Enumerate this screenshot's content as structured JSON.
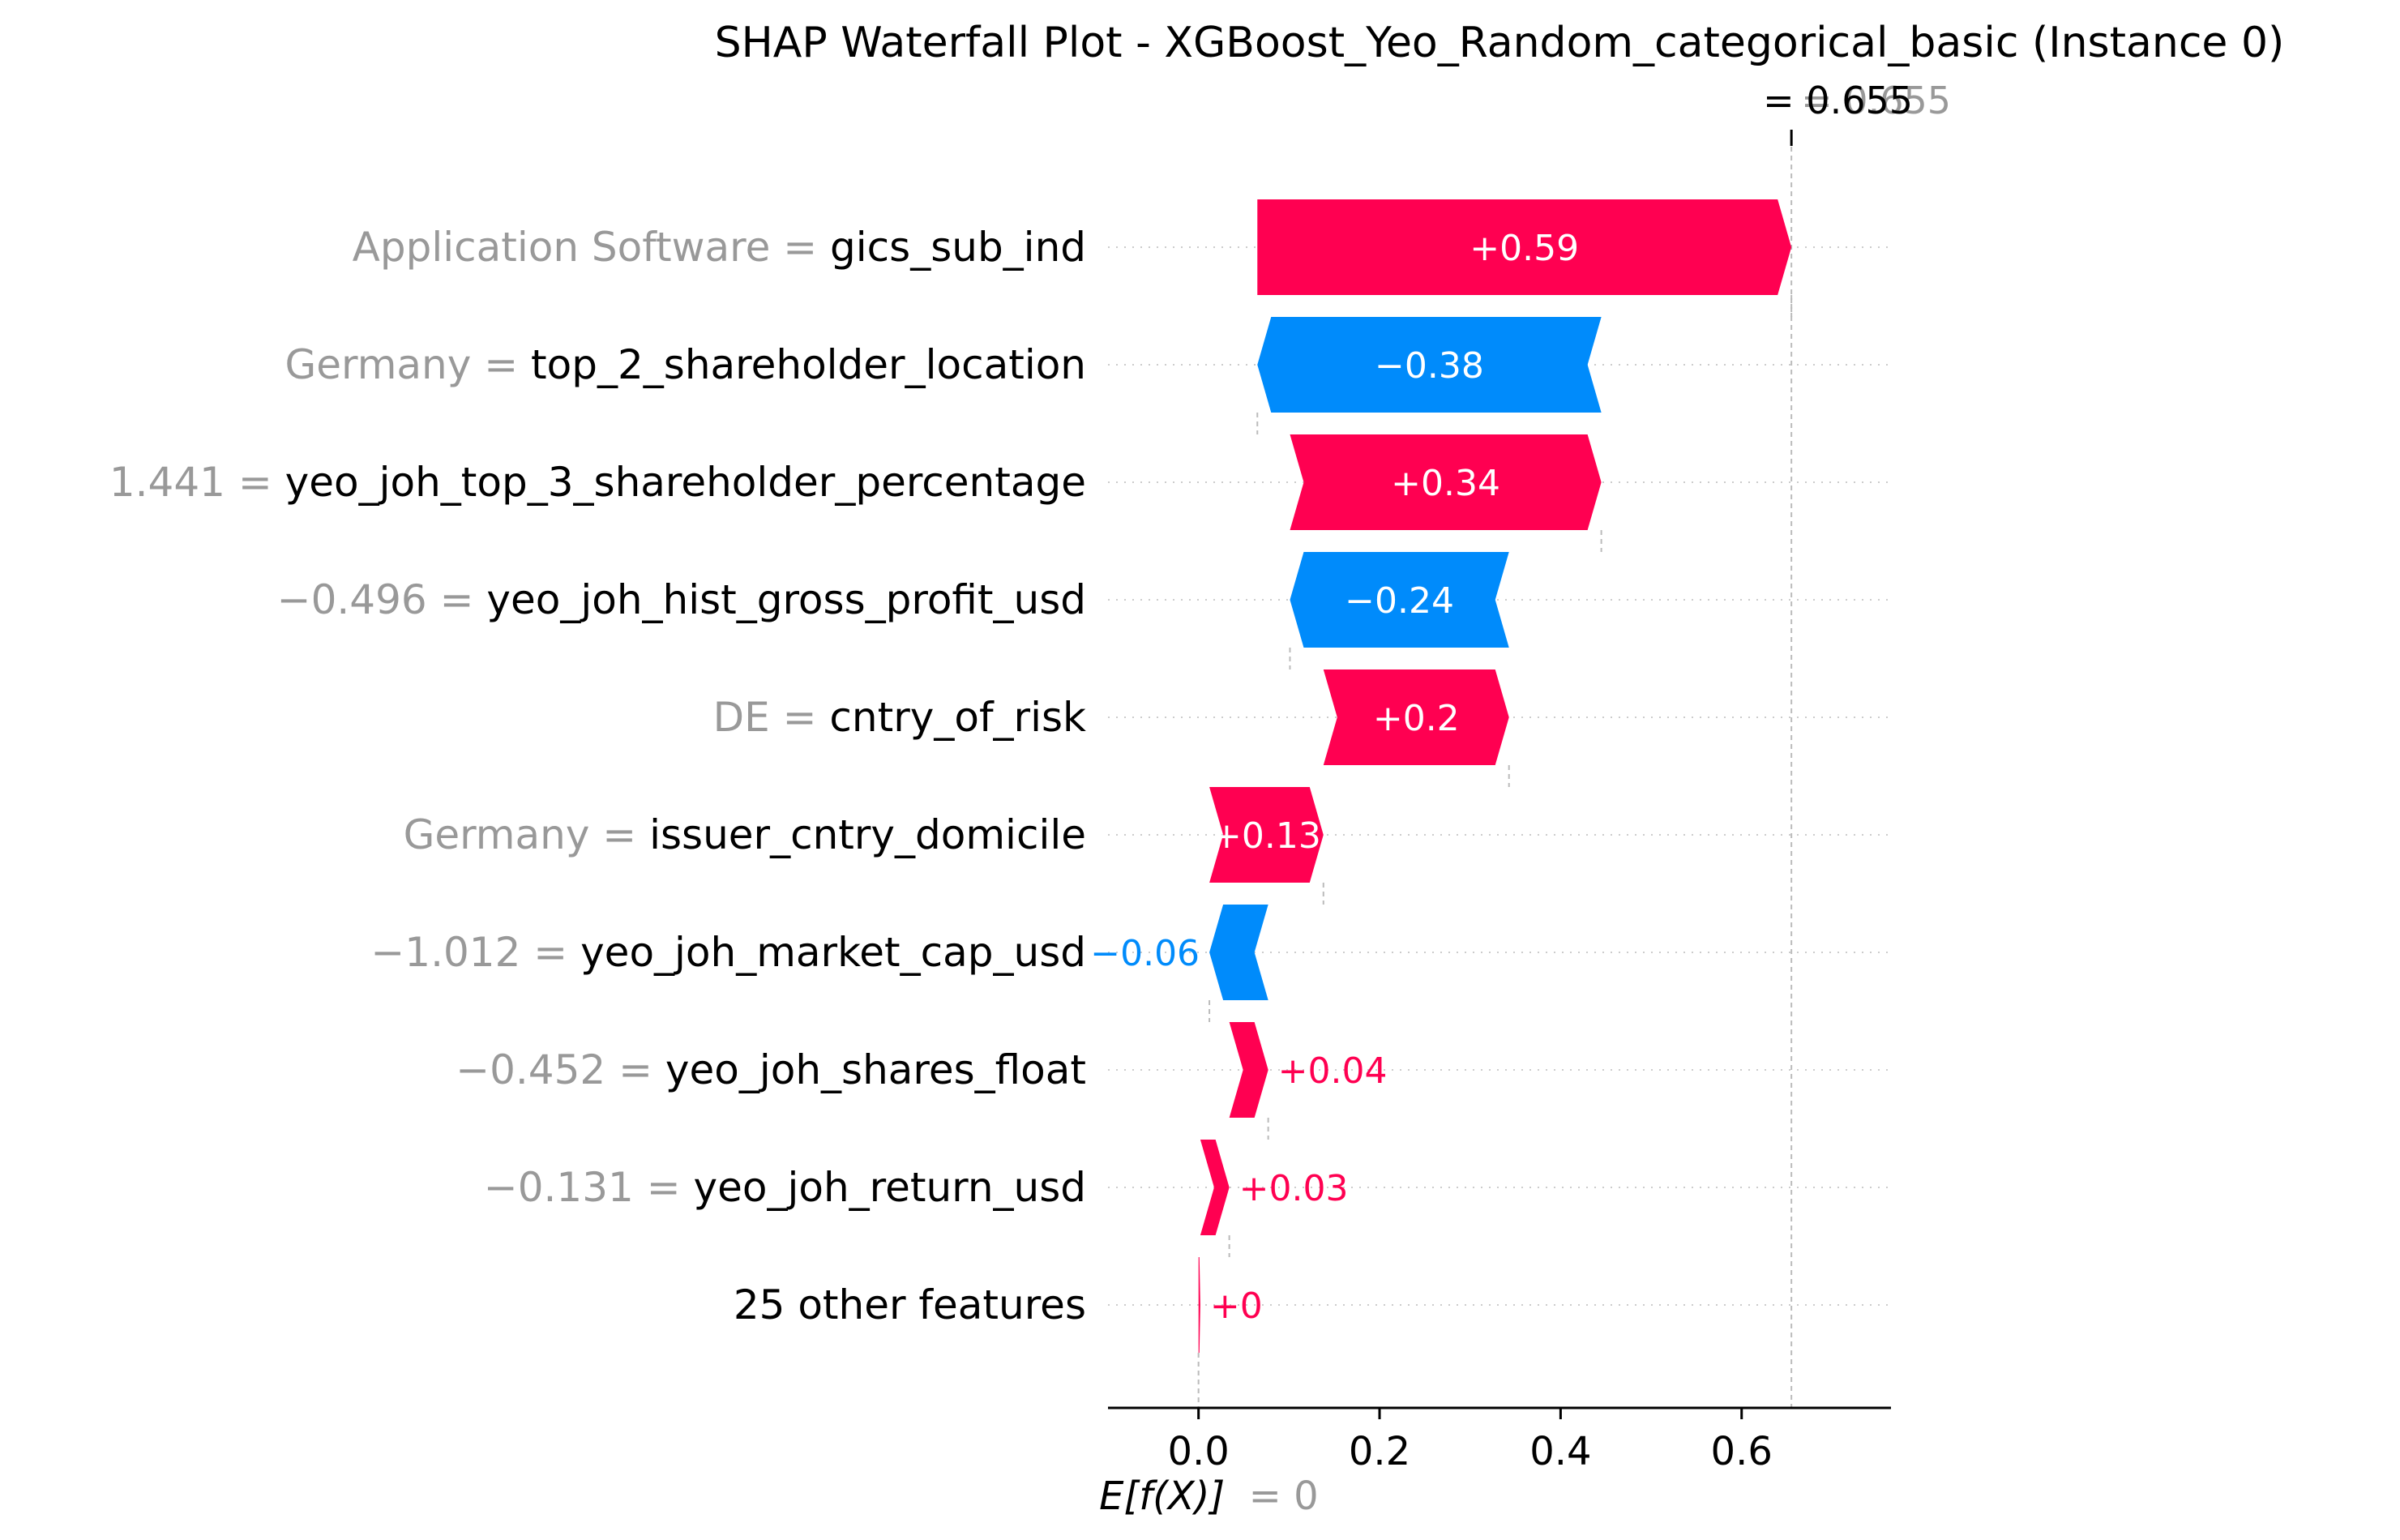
{
  "chart_data": {
    "type": "waterfall",
    "title": "SHAP Waterfall Plot - XGBoost_Yeo_Random_categorical_basic (Instance 0)",
    "fx_label": "= 0.655",
    "fx_overlap_label": "= 0.655",
    "fx_value": 0.655,
    "base_value": 0,
    "base_label_prefix": "E[f(X)]",
    "base_label_suffix": "= 0",
    "xlim": [
      -0.1,
      0.765
    ],
    "xticks": [
      0.0,
      0.2,
      0.4,
      0.6
    ],
    "xtick_labels": [
      "0.0",
      "0.2",
      "0.4",
      "0.6"
    ],
    "colors": {
      "positive": "#ff0051",
      "negative": "#008bfb",
      "muted": "#999999",
      "axis": "#000000"
    },
    "features": [
      {
        "value_text": "Application Software",
        "feature": "gics_sub_ind",
        "start": 0.065,
        "end": 0.655,
        "label": "+0.59",
        "label_inside": true
      },
      {
        "value_text": "Germany",
        "feature": "top_2_shareholder_location",
        "start": 0.445,
        "end": 0.065,
        "label": "−0.38",
        "label_inside": true
      },
      {
        "value_text": "1.441",
        "feature": "yeo_joh_top_3_shareholder_percentage",
        "start": 0.101,
        "end": 0.445,
        "label": "+0.34",
        "label_inside": true
      },
      {
        "value_text": "−0.496",
        "feature": "yeo_joh_hist_gross_profit_usd",
        "start": 0.343,
        "end": 0.101,
        "label": "−0.24",
        "label_inside": true
      },
      {
        "value_text": "DE",
        "feature": "cntry_of_risk",
        "start": 0.138,
        "end": 0.343,
        "label": "+0.2",
        "label_inside": true
      },
      {
        "value_text": "Germany",
        "feature": "issuer_cntry_domicile",
        "start": 0.012,
        "end": 0.138,
        "label": "+0.13",
        "label_inside": true
      },
      {
        "value_text": "−1.012",
        "feature": "yeo_joh_market_cap_usd",
        "start": 0.077,
        "end": 0.012,
        "label": "−0.06",
        "label_inside": false
      },
      {
        "value_text": "−0.452",
        "feature": "yeo_joh_shares_float",
        "start": 0.034,
        "end": 0.077,
        "label": "+0.04",
        "label_inside": false
      },
      {
        "value_text": "−0.131",
        "feature": "yeo_joh_return_usd",
        "start": 0.002,
        "end": 0.034,
        "label": "+0.03",
        "label_inside": false
      },
      {
        "value_text": "",
        "feature": "25 other features",
        "start": 0.0,
        "end": 0.002,
        "label": "+0",
        "label_inside": false
      }
    ]
  }
}
